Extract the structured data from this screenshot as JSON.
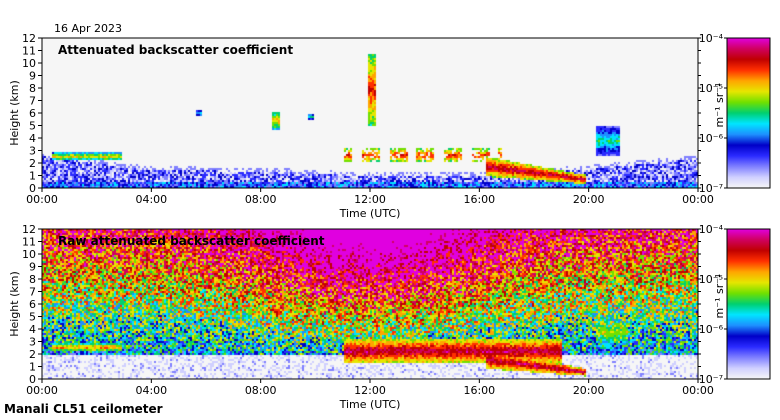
{
  "date": "16 Apr 2023",
  "footer": "Manali CL51 ceilometer",
  "colormap": [
    "#f6f6f6",
    "#d0d0ff",
    "#8080ff",
    "#2a2aff",
    "#0000c8",
    "#1e90ff",
    "#00e5ff",
    "#00d070",
    "#70e000",
    "#e6e600",
    "#ffa500",
    "#ff3000",
    "#c00000",
    "#d00060",
    "#e000e0"
  ],
  "chart_data": [
    {
      "type": "heatmap",
      "title": "Attenuated backscatter coefficient",
      "xlabel": "Time (UTC)",
      "ylabel": "Height (km)",
      "x_ticks": [
        "00:00",
        "04:00",
        "08:00",
        "12:00",
        "16:00",
        "20:00",
        "00:00"
      ],
      "y_ticks": [
        "0",
        "1",
        "2",
        "3",
        "4",
        "5",
        "6",
        "7",
        "8",
        "9",
        "10",
        "11",
        "12"
      ],
      "xlim_hours": [
        0,
        24
      ],
      "ylim_km": [
        0,
        12
      ],
      "colorbar": {
        "label": "m⁻¹ sr⁻¹",
        "ticks": [
          "10⁻⁷",
          "10⁻⁶",
          "10⁻⁵",
          "10⁻⁴"
        ],
        "exponent_range": [
          -7,
          -4
        ]
      },
      "features": [
        {
          "name": "boundary-layer",
          "t_start": 0,
          "t_end": 24,
          "top_km": [
            [
              0,
              2.6
            ],
            [
              4,
              1.5
            ],
            [
              8,
              1.4
            ],
            [
              12,
              1.0
            ],
            [
              16,
              1.0
            ],
            [
              20,
              1.6
            ],
            [
              24,
              2.4
            ]
          ],
          "log_value": -6.3
        },
        {
          "name": "morning-layer",
          "t_start": 0.3,
          "t_end": 2.9,
          "base_km": 2.3,
          "top_km": 2.9,
          "log_value": -5.0
        },
        {
          "name": "elevated-aerosol-1",
          "t_start": 5.6,
          "t_end": 5.8,
          "base_km": 5.8,
          "top_km": 6.3,
          "log_value": -5.6
        },
        {
          "name": "elevated-aerosol-2",
          "t_start": 8.4,
          "t_end": 8.7,
          "base_km": 4.8,
          "top_km": 6.2,
          "log_value": -4.9
        },
        {
          "name": "elevated-aerosol-3",
          "t_start": 9.7,
          "t_end": 9.9,
          "base_km": 5.6,
          "top_km": 6.0,
          "log_value": -5.3
        },
        {
          "name": "cloud-column",
          "t_start": 11.9,
          "t_end": 12.2,
          "base_km": 5.0,
          "top_km": 10.8,
          "log_value": -4.6
        },
        {
          "name": "scattered-clouds",
          "t_start": 11.0,
          "t_end": 16.8,
          "base_km": 2.1,
          "top_km": 3.3,
          "log_value": -4.6
        },
        {
          "name": "descending-cloud-layer",
          "t_start": 16.2,
          "t_end": 19.9,
          "base_km": 0.4,
          "top_km": 2.6,
          "log_value": -4.4
        },
        {
          "name": "evening-cloud",
          "t_start": 20.2,
          "t_end": 21.1,
          "base_km": 2.7,
          "top_km": 5.0,
          "log_value": -5.5
        }
      ]
    },
    {
      "type": "heatmap",
      "title": "Raw attenuated backscatter coefficient",
      "xlabel": "Time (UTC)",
      "ylabel": "Height (km)",
      "x_ticks": [
        "00:00",
        "04:00",
        "08:00",
        "12:00",
        "16:00",
        "20:00",
        "00:00"
      ],
      "y_ticks": [
        "0",
        "1",
        "2",
        "3",
        "4",
        "5",
        "6",
        "7",
        "8",
        "9",
        "10",
        "11",
        "12"
      ],
      "xlim_hours": [
        0,
        24
      ],
      "ylim_km": [
        0,
        12
      ],
      "colorbar": {
        "label": "m⁻¹ sr⁻¹",
        "ticks": [
          "10⁻⁷",
          "10⁻⁶",
          "10⁻⁵",
          "10⁻⁴"
        ],
        "exponent_range": [
          -7,
          -4
        ]
      },
      "features": [
        {
          "name": "daytime-noise",
          "t_start": 6.0,
          "t_end": 18.2,
          "base_km": 4.0,
          "top_km": 12.0,
          "log_value": -4.6
        },
        {
          "name": "morning-layer",
          "t_start": 0.3,
          "t_end": 2.9,
          "base_km": 2.3,
          "top_km": 2.9,
          "log_value": -4.8
        },
        {
          "name": "elevated-aerosol-2",
          "t_start": 8.4,
          "t_end": 8.7,
          "base_km": 4.8,
          "top_km": 6.2,
          "log_value": -4.6
        },
        {
          "name": "cloud-layer",
          "t_start": 11.0,
          "t_end": 19.0,
          "base_km": 1.4,
          "top_km": 3.2,
          "log_value": -4.3
        },
        {
          "name": "descending-cloud-layer",
          "t_start": 16.2,
          "t_end": 19.9,
          "base_km": 0.3,
          "top_km": 2.4,
          "log_value": -4.3
        },
        {
          "name": "evening-cloud",
          "t_start": 20.2,
          "t_end": 21.3,
          "base_km": 2.7,
          "top_km": 5.0,
          "log_value": -5.2
        }
      ]
    }
  ]
}
